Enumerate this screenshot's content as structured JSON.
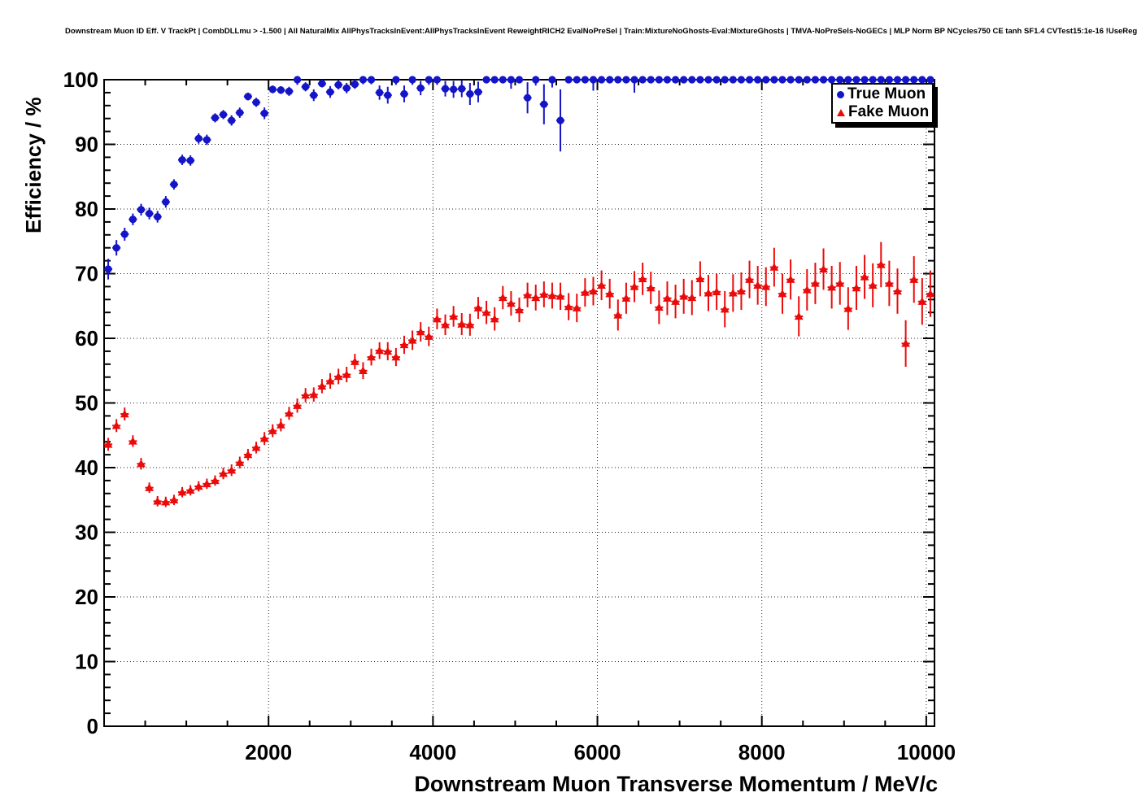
{
  "header": {
    "title": "Downstream Muon ID Eff. V TrackPt | CombDLLmu > -1.500 | All NaturalMix AllPhysTracksInEvent:AllPhysTracksInEvent ReweightRICH2 EvalNoPreSel | Train:MixtureNoGhosts-Eval:MixtureGhosts | TMVA-NoPreSels-NoGECs | MLP Norm BP NCycles750 CE tanh SF1.4 CVTest15:1e-16 !UseReg"
  },
  "legend": {
    "items": [
      {
        "label": "True Muon",
        "marker": "circle",
        "color": "#1414c8"
      },
      {
        "label": "Fake Muon",
        "marker": "triangle",
        "color": "#eb0a0a"
      }
    ]
  },
  "chart_data": {
    "type": "scatter",
    "title": "Downstream Muon ID Eff. V TrackPt | CombDLLmu > -1.500 | All NaturalMix AllPhysTracksInEvent:AllPhysTracksInEvent ReweightRICH2 EvalNoPreSel | Train:MixtureNoGhosts-Eval:MixtureGhosts | TMVA-NoPreSels-NoGECs | MLP Norm BP NCycles750 CE tanh SF1.4 CVTest15:1e-16 !UseReg",
    "xlabel": "Downstream Muon Transverse Momentum / MeV/c",
    "ylabel": "Efficiency / %",
    "xlim": [
      0,
      10100
    ],
    "ylim": [
      0,
      100
    ],
    "x_ticks": [
      2000,
      4000,
      6000,
      8000,
      10000
    ],
    "x_minor_step": 500,
    "y_ticks": [
      0,
      10,
      20,
      30,
      40,
      50,
      60,
      70,
      80,
      90,
      100
    ],
    "y_minor_step": 2,
    "grid": "dotted-major",
    "legend_position": "top-right",
    "error_bars": true,
    "bin_half_width": 50,
    "series": [
      {
        "name": "True Muon",
        "color": "#1414c8",
        "marker": "circle",
        "points": [
          [
            50,
            70.7,
            1.6
          ],
          [
            150,
            74.0,
            1.2
          ],
          [
            250,
            76.1,
            1.0
          ],
          [
            350,
            78.4,
            0.9
          ],
          [
            450,
            79.9,
            0.9
          ],
          [
            550,
            79.3,
            0.9
          ],
          [
            650,
            78.8,
            0.9
          ],
          [
            750,
            81.1,
            0.9
          ],
          [
            850,
            83.8,
            0.8
          ],
          [
            950,
            87.6,
            0.8
          ],
          [
            1050,
            87.5,
            0.8
          ],
          [
            1150,
            90.9,
            0.8
          ],
          [
            1250,
            90.7,
            0.8
          ],
          [
            1350,
            94.1,
            0.7
          ],
          [
            1450,
            94.6,
            0.7
          ],
          [
            1550,
            93.7,
            0.8
          ],
          [
            1650,
            94.9,
            0.8
          ],
          [
            1750,
            97.4,
            0.6
          ],
          [
            1850,
            96.5,
            0.7
          ],
          [
            1950,
            94.8,
            0.9
          ],
          [
            2050,
            98.5,
            0.6
          ],
          [
            2150,
            98.4,
            0.6
          ],
          [
            2250,
            98.2,
            0.7
          ],
          [
            2350,
            100,
            0.8
          ],
          [
            2450,
            98.9,
            0.7
          ],
          [
            2550,
            97.6,
            0.9
          ],
          [
            2650,
            99.4,
            0.6
          ],
          [
            2750,
            98.1,
            0.9
          ],
          [
            2850,
            99.2,
            0.7
          ],
          [
            2950,
            98.7,
            0.8
          ],
          [
            3050,
            99.3,
            0.7
          ],
          [
            3150,
            100,
            0.7
          ],
          [
            3250,
            100,
            0.7
          ],
          [
            3350,
            98.0,
            1.1
          ],
          [
            3450,
            97.6,
            1.3
          ],
          [
            3550,
            100,
            0.8
          ],
          [
            3650,
            97.8,
            1.3
          ],
          [
            3750,
            100,
            0.8
          ],
          [
            3850,
            98.7,
            1.1
          ],
          [
            3950,
            100,
            0.8
          ],
          [
            4050,
            100,
            0.8
          ],
          [
            4150,
            98.6,
            1.2
          ],
          [
            4250,
            98.5,
            1.3
          ],
          [
            4350,
            98.6,
            1.3
          ],
          [
            4450,
            97.8,
            1.7
          ],
          [
            4550,
            98.1,
            1.6
          ],
          [
            4650,
            100,
            0.5
          ],
          [
            4750,
            100,
            0.5
          ],
          [
            4850,
            100,
            0.5
          ],
          [
            4950,
            100,
            1.4
          ],
          [
            5050,
            100,
            0.5
          ],
          [
            5150,
            97.2,
            2.4
          ],
          [
            5250,
            100,
            0.9
          ],
          [
            5350,
            96.2,
            3.1
          ],
          [
            5450,
            100,
            1.2
          ],
          [
            5550,
            93.7,
            4.8
          ],
          [
            5650,
            100,
            0.5
          ],
          [
            5750,
            100,
            0.5
          ],
          [
            5850,
            100,
            0.5
          ],
          [
            5950,
            100,
            1.7
          ],
          [
            6050,
            100,
            0.5
          ],
          [
            6150,
            100,
            0.5
          ],
          [
            6250,
            100,
            0.5
          ],
          [
            6350,
            100,
            0.5
          ],
          [
            6450,
            100,
            2.0
          ],
          [
            6550,
            100,
            0.5
          ],
          [
            6650,
            100,
            0.5
          ],
          [
            6750,
            100,
            0.5
          ],
          [
            6850,
            100,
            0.5
          ],
          [
            6950,
            100,
            0.5
          ],
          [
            7050,
            100,
            0.5
          ],
          [
            7150,
            100,
            0.5
          ],
          [
            7250,
            100,
            0.5
          ],
          [
            7350,
            100,
            0.5
          ],
          [
            7450,
            100,
            0.5
          ],
          [
            7550,
            100,
            0.5
          ],
          [
            7650,
            100,
            0.5
          ],
          [
            7750,
            100,
            0.5
          ],
          [
            7850,
            100,
            0.5
          ],
          [
            7950,
            100,
            0.5
          ],
          [
            8050,
            100,
            0.5
          ],
          [
            8150,
            100,
            0.5
          ],
          [
            8250,
            100,
            0.5
          ],
          [
            8350,
            100,
            0.5
          ],
          [
            8450,
            100,
            0.5
          ],
          [
            8550,
            100,
            0.5
          ],
          [
            8650,
            100,
            0.5
          ],
          [
            8750,
            100,
            0.5
          ],
          [
            8850,
            100,
            0.5
          ],
          [
            8950,
            100,
            0.5
          ],
          [
            9050,
            100,
            0.5
          ],
          [
            9150,
            100,
            0.5
          ],
          [
            9250,
            100,
            0.5
          ],
          [
            9350,
            100,
            0.5
          ],
          [
            9450,
            100,
            0.5
          ],
          [
            9550,
            100,
            0.5
          ],
          [
            9650,
            100,
            0.5
          ],
          [
            9750,
            100,
            0.5
          ],
          [
            9850,
            100,
            0.5
          ],
          [
            9950,
            100,
            0.5
          ],
          [
            10050,
            100,
            0.5
          ]
        ]
      },
      {
        "name": "Fake Muon",
        "color": "#eb0a0a",
        "marker": "triangle-up",
        "points": [
          [
            50,
            43.6,
            1.0
          ],
          [
            150,
            46.5,
            1.0
          ],
          [
            250,
            48.3,
            1.0
          ],
          [
            350,
            44.1,
            0.9
          ],
          [
            450,
            40.6,
            0.9
          ],
          [
            550,
            36.9,
            0.8
          ],
          [
            650,
            34.8,
            0.8
          ],
          [
            750,
            34.7,
            0.8
          ],
          [
            850,
            35.0,
            0.8
          ],
          [
            950,
            36.2,
            0.8
          ],
          [
            1050,
            36.5,
            0.8
          ],
          [
            1150,
            37.1,
            0.8
          ],
          [
            1250,
            37.5,
            0.8
          ],
          [
            1350,
            38.0,
            0.8
          ],
          [
            1450,
            39.1,
            0.9
          ],
          [
            1550,
            39.6,
            0.9
          ],
          [
            1650,
            40.8,
            0.9
          ],
          [
            1750,
            42.0,
            0.9
          ],
          [
            1850,
            43.1,
            0.9
          ],
          [
            1950,
            44.5,
            1.0
          ],
          [
            2050,
            45.7,
            1.0
          ],
          [
            2150,
            46.6,
            1.0
          ],
          [
            2250,
            48.4,
            1.0
          ],
          [
            2350,
            49.6,
            1.1
          ],
          [
            2450,
            51.2,
            1.1
          ],
          [
            2550,
            51.3,
            1.1
          ],
          [
            2650,
            52.6,
            1.1
          ],
          [
            2750,
            53.4,
            1.2
          ],
          [
            2850,
            54.1,
            1.2
          ],
          [
            2950,
            54.4,
            1.2
          ],
          [
            3050,
            56.4,
            1.2
          ],
          [
            3150,
            55.0,
            1.3
          ],
          [
            3250,
            57.1,
            1.3
          ],
          [
            3350,
            58.1,
            1.3
          ],
          [
            3450,
            58.0,
            1.4
          ],
          [
            3550,
            57.1,
            1.4
          ],
          [
            3650,
            59.0,
            1.4
          ],
          [
            3750,
            59.7,
            1.5
          ],
          [
            3850,
            61.0,
            1.5
          ],
          [
            3950,
            60.3,
            1.5
          ],
          [
            4050,
            63.0,
            1.6
          ],
          [
            4150,
            62.1,
            1.6
          ],
          [
            4250,
            63.4,
            1.6
          ],
          [
            4350,
            62.2,
            1.7
          ],
          [
            4450,
            62.1,
            1.7
          ],
          [
            4550,
            64.7,
            1.7
          ],
          [
            4650,
            64.0,
            1.8
          ],
          [
            4750,
            63.0,
            1.8
          ],
          [
            4850,
            66.3,
            1.8
          ],
          [
            4950,
            65.4,
            1.9
          ],
          [
            5050,
            64.4,
            1.9
          ],
          [
            5150,
            66.7,
            1.9
          ],
          [
            5250,
            66.3,
            2.0
          ],
          [
            5350,
            66.8,
            2.0
          ],
          [
            5450,
            66.6,
            2.0
          ],
          [
            5550,
            66.5,
            2.1
          ],
          [
            5650,
            64.9,
            2.1
          ],
          [
            5750,
            64.7,
            2.2
          ],
          [
            5850,
            67.1,
            2.2
          ],
          [
            5950,
            67.3,
            2.2
          ],
          [
            6050,
            68.2,
            2.3
          ],
          [
            6150,
            66.9,
            2.3
          ],
          [
            6250,
            63.6,
            2.4
          ],
          [
            6350,
            66.2,
            2.4
          ],
          [
            6450,
            68.0,
            2.4
          ],
          [
            6550,
            69.2,
            2.5
          ],
          [
            6650,
            67.8,
            2.5
          ],
          [
            6750,
            64.8,
            2.6
          ],
          [
            6850,
            66.2,
            2.6
          ],
          [
            6950,
            65.7,
            2.6
          ],
          [
            7050,
            66.5,
            2.7
          ],
          [
            7150,
            66.3,
            2.7
          ],
          [
            7250,
            69.2,
            2.7
          ],
          [
            7350,
            67.0,
            2.8
          ],
          [
            7450,
            67.2,
            2.8
          ],
          [
            7550,
            64.5,
            2.8
          ],
          [
            7650,
            67.0,
            2.9
          ],
          [
            7750,
            67.3,
            2.9
          ],
          [
            7850,
            69.1,
            2.9
          ],
          [
            7950,
            68.2,
            3.0
          ],
          [
            8050,
            68.0,
            3.0
          ],
          [
            8150,
            71.0,
            3.0
          ],
          [
            8250,
            66.9,
            3.1
          ],
          [
            8350,
            69.1,
            3.1
          ],
          [
            8450,
            63.4,
            3.1
          ],
          [
            8550,
            67.5,
            3.2
          ],
          [
            8650,
            68.5,
            3.2
          ],
          [
            8750,
            70.7,
            3.2
          ],
          [
            8850,
            67.9,
            3.3
          ],
          [
            8950,
            68.5,
            3.3
          ],
          [
            9050,
            64.6,
            3.3
          ],
          [
            9150,
            67.8,
            3.4
          ],
          [
            9250,
            69.5,
            3.4
          ],
          [
            9350,
            68.2,
            3.4
          ],
          [
            9450,
            71.4,
            3.5
          ],
          [
            9550,
            68.5,
            3.5
          ],
          [
            9650,
            67.3,
            3.5
          ],
          [
            9750,
            59.2,
            3.6
          ],
          [
            9850,
            69.1,
            3.6
          ],
          [
            9950,
            65.7,
            3.6
          ],
          [
            10050,
            66.9,
            3.6
          ]
        ]
      }
    ]
  }
}
